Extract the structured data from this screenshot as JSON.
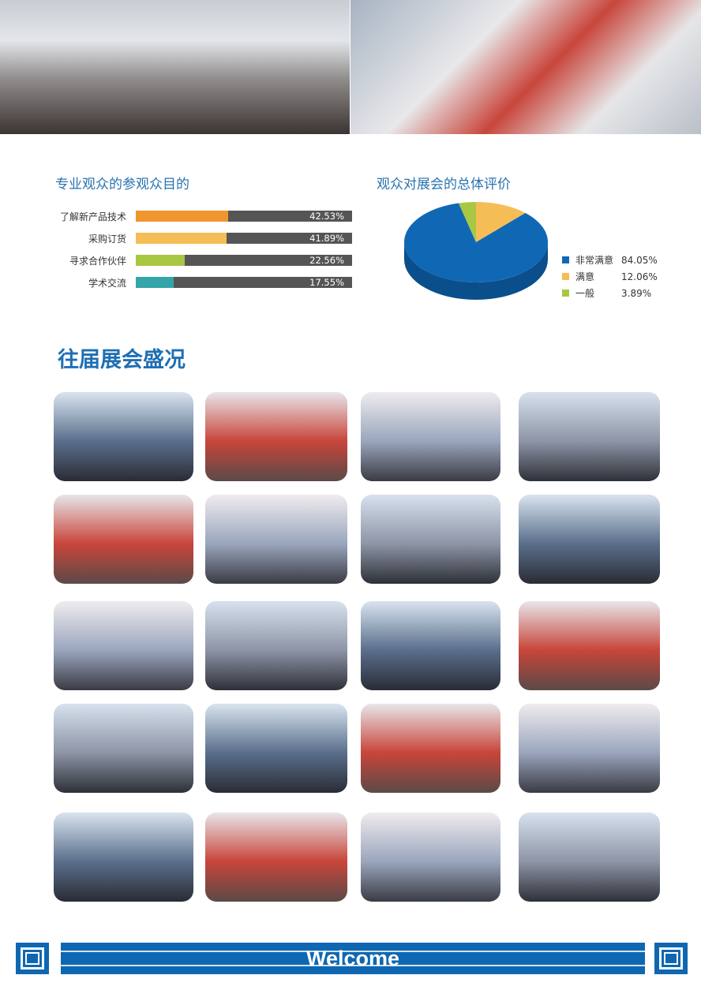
{
  "purpose_chart": {
    "title": "专业观众的参观众目的",
    "chart_data": {
      "type": "bar",
      "orientation": "horizontal",
      "categories": [
        "了解新产品技术",
        "采购订货",
        "寻求合作伙伴",
        "学术交流"
      ],
      "values": [
        42.53,
        41.89,
        22.56,
        17.55
      ],
      "value_labels": [
        "42.53%",
        "41.89%",
        "22.56%",
        "17.55%"
      ],
      "xlim": [
        0,
        100
      ],
      "colors": [
        "#f0962e",
        "#f5bd55",
        "#a8c843",
        "#33a5ab"
      ],
      "track_color": "#555555"
    }
  },
  "rating_chart": {
    "title": "观众对展会的总体评价",
    "chart_data": {
      "type": "pie",
      "style": "3d",
      "categories": [
        "非常满意",
        "满意",
        "一般"
      ],
      "values": [
        84.05,
        12.06,
        3.89
      ],
      "value_labels": [
        "84.05%",
        "12.06%",
        "3.89%"
      ],
      "colors": [
        "#1068b5",
        "#f5bd55",
        "#a8c843"
      ],
      "legend": "right"
    }
  },
  "gallery": {
    "title": "往届展会盛况"
  },
  "footer": {
    "banner_text": "Welcome"
  },
  "colors": {
    "brand_blue": "#0f67b1",
    "title_blue": "#2a73b0"
  }
}
